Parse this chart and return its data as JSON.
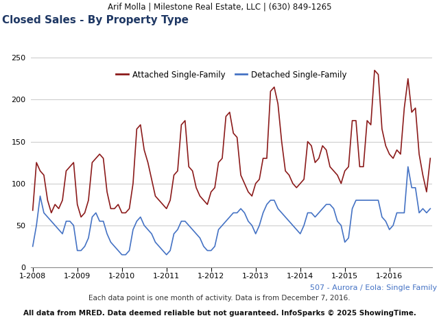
{
  "header": "Arif Molla | Milestone Real Estate, LLC | (630) 849-1265",
  "title": "Closed Sales - By Property Type",
  "subtitle": "507 - Aurora / Eola: Single Family",
  "footer1": "Each data point is one month of activity. Data is from December 7, 2016.",
  "footer2": "All data from MRED. Data deemed reliable but not guaranteed. InfoSparks © 2025 ShowingTime.",
  "legend_labels": [
    "Attached Single-Family",
    "Detached Single-Family"
  ],
  "attached_color": "#8B1A1A",
  "detached_color": "#4472C4",
  "ylim": [
    0,
    260
  ],
  "yticks": [
    0,
    50,
    100,
    150,
    200,
    250
  ],
  "x_labels": [
    "1-2008",
    "1-2009",
    "1-2010",
    "1-2011",
    "1-2012",
    "1-2013",
    "1-2014",
    "1-2015",
    "1-2016"
  ],
  "header_bg": "#E0E0E0",
  "plot_bg": "#FFFFFF",
  "title_color": "#1F3864",
  "subtitle_color": "#4472C4",
  "attached": [
    68,
    125,
    115,
    110,
    80,
    65,
    75,
    70,
    80,
    115,
    120,
    125,
    75,
    60,
    65,
    80,
    125,
    130,
    135,
    130,
    90,
    70,
    70,
    75,
    65,
    65,
    70,
    100,
    165,
    170,
    140,
    125,
    105,
    85,
    80,
    75,
    70,
    80,
    110,
    115,
    170,
    175,
    120,
    115,
    95,
    85,
    80,
    75,
    90,
    95,
    125,
    130,
    180,
    185,
    160,
    155,
    110,
    100,
    90,
    85,
    100,
    105,
    130,
    130,
    210,
    215,
    195,
    150,
    115,
    110,
    100,
    95,
    100,
    105,
    150,
    145,
    125,
    130,
    145,
    140,
    120,
    115,
    110,
    100,
    115,
    120,
    175,
    175,
    120,
    120,
    175,
    170,
    235,
    230,
    165,
    145,
    135,
    130,
    140,
    135,
    190,
    225,
    185,
    190,
    135,
    110,
    90,
    130
  ],
  "detached": [
    25,
    50,
    85,
    65,
    60,
    55,
    50,
    45,
    40,
    55,
    55,
    50,
    20,
    20,
    25,
    35,
    60,
    65,
    55,
    55,
    40,
    30,
    25,
    20,
    15,
    15,
    20,
    45,
    55,
    60,
    50,
    45,
    40,
    30,
    25,
    20,
    15,
    20,
    40,
    45,
    55,
    55,
    50,
    45,
    40,
    35,
    25,
    20,
    20,
    25,
    45,
    50,
    55,
    60,
    65,
    65,
    70,
    65,
    55,
    50,
    40,
    50,
    65,
    75,
    80,
    80,
    70,
    65,
    60,
    55,
    50,
    45,
    40,
    50,
    65,
    65,
    60,
    65,
    70,
    75,
    75,
    70,
    55,
    50,
    30,
    35,
    70,
    80,
    80,
    80,
    80,
    80,
    80,
    80,
    60,
    55,
    45,
    50,
    65,
    65,
    65,
    120,
    95,
    95,
    65,
    70,
    65,
    70
  ]
}
